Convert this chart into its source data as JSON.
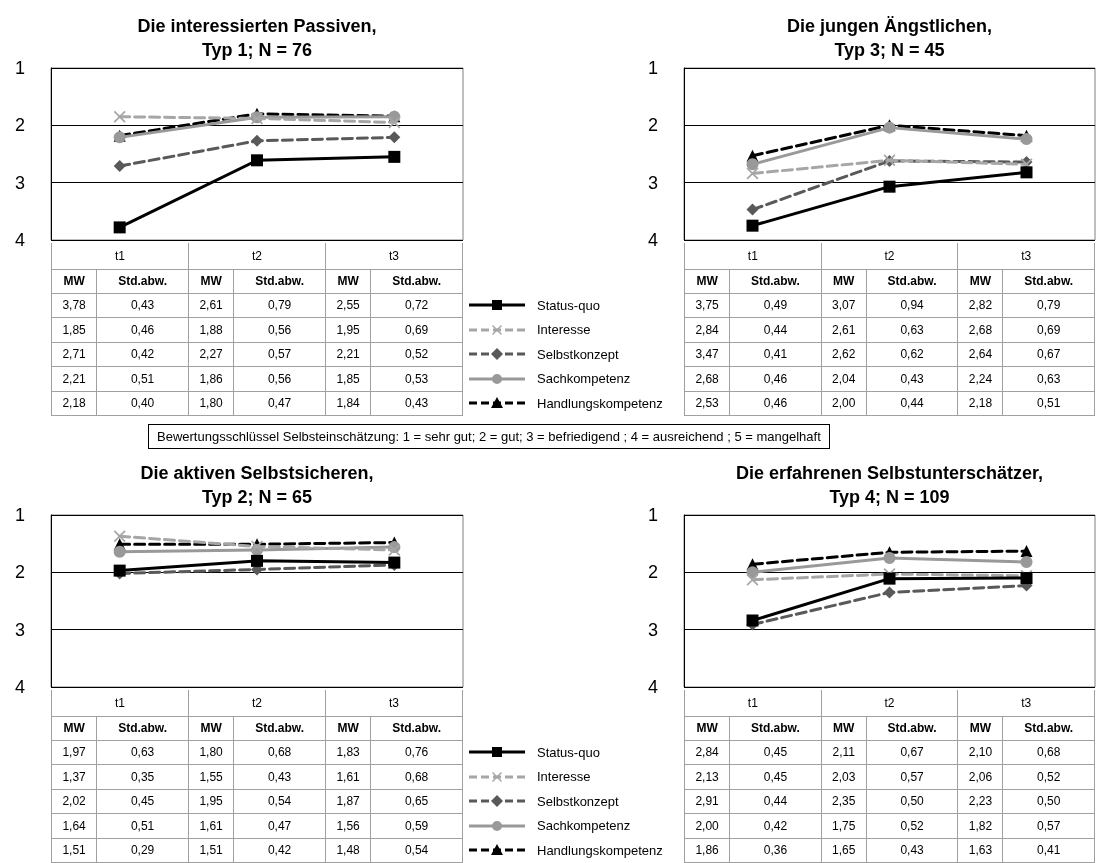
{
  "chart_data": [
    {
      "type": "line",
      "title": "Die interessierten Passiven,\nTyp 1; N = 76",
      "categories": [
        "t1",
        "t2",
        "t3"
      ],
      "ylim": [
        4,
        1
      ],
      "yticks": [
        1,
        2,
        3,
        4
      ],
      "grid": "y",
      "legend": "right",
      "annotations": [
        "MW",
        "Std.abw.",
        "0,43",
        "0,79",
        "0,72",
        "0,46",
        "0,56",
        "0,69",
        "0,42",
        "0,57",
        "0,52",
        "0,51",
        "0,56",
        "0,53",
        "0,40",
        "0,47",
        "0,43",
        "Bewertungsschlüssel Selbsteinschätzung:  1 = sehr gut; 2 = gut; 3 = befriedigend ; 4 = ausreichend ; 5 = mangelhaft"
      ],
      "series": [
        {
          "name": "Status-quo",
          "color": "#000000",
          "marker": "square",
          "line_style": "solid",
          "values": [
            3.78,
            2.61,
            2.55
          ],
          "value_labels": [
            "3,78",
            "2,61",
            "2,55"
          ]
        },
        {
          "name": "Interesse",
          "color": "#a6a6a6",
          "marker": "cross",
          "line_style": "dashed",
          "values": [
            1.85,
            1.88,
            1.95
          ],
          "value_labels": [
            "1,85",
            "1,88",
            "1,95"
          ]
        },
        {
          "name": "Selbstkonzept",
          "color": "#595959",
          "marker": "diamond",
          "line_style": "dashed",
          "values": [
            2.71,
            2.27,
            2.21
          ],
          "value_labels": [
            "2,71",
            "2,27",
            "2,21"
          ]
        },
        {
          "name": "Sachkompetenz",
          "color": "#999999",
          "marker": "circle",
          "line_style": "solid",
          "values": [
            2.21,
            1.86,
            1.85
          ],
          "value_labels": [
            "2,21",
            "1,86",
            "1,85"
          ]
        },
        {
          "name": "Handlungskompetenz",
          "color": "#000000",
          "marker": "triangle",
          "line_style": "dashed",
          "values": [
            2.18,
            1.8,
            1.84
          ],
          "value_labels": [
            "2,18",
            "1,80",
            "1,84"
          ]
        }
      ]
    },
    {
      "type": "line",
      "title": "Die jungen Ängstlichen,\nTyp 3; N = 45",
      "categories": [
        "t1",
        "t2",
        "t3"
      ],
      "ylim": [
        4,
        1
      ],
      "yticks": [
        1,
        2,
        3,
        4
      ],
      "grid": "y",
      "annotations": [
        "MW",
        "Std.abw.",
        "0,49",
        "0,94",
        "0,79",
        "0,44",
        "0,63",
        "0,69",
        "0,41",
        "0,62",
        "0,67",
        "0,46",
        "0,43",
        "0,63",
        "0,46",
        "0,44",
        "0,51"
      ],
      "series": [
        {
          "color": "#000000",
          "marker": "square",
          "line_style": "solid",
          "values": [
            3.75,
            3.07,
            2.82
          ],
          "value_labels": [
            "3,75",
            "3,07",
            "2,82"
          ]
        },
        {
          "color": "#a6a6a6",
          "marker": "cross",
          "line_style": "dashed",
          "values": [
            2.84,
            2.61,
            2.68
          ],
          "value_labels": [
            "2,84",
            "2,61",
            "2,68"
          ]
        },
        {
          "color": "#595959",
          "marker": "diamond",
          "line_style": "dashed",
          "values": [
            3.47,
            2.62,
            2.64
          ],
          "value_labels": [
            "3,47",
            "2,62",
            "2,64"
          ]
        },
        {
          "color": "#999999",
          "marker": "circle",
          "line_style": "solid",
          "values": [
            2.68,
            2.04,
            2.24
          ],
          "value_labels": [
            "2,68",
            "2,04",
            "2,24"
          ]
        },
        {
          "color": "#000000",
          "marker": "triangle",
          "line_style": "dashed",
          "values": [
            2.53,
            2.0,
            2.18
          ],
          "value_labels": [
            "2,53",
            "2,00",
            "2,18"
          ]
        }
      ]
    },
    {
      "type": "line",
      "title": "Die aktiven Selbstsicheren,\nTyp 2; N = 65",
      "categories": [
        "t1",
        "t2",
        "t3"
      ],
      "ylim": [
        4,
        1
      ],
      "yticks": [
        1,
        2,
        3,
        4
      ],
      "grid": "y",
      "legend": "right",
      "annotations": [
        "MW",
        "Std.abw.",
        "0,63",
        "0,68",
        "0,76",
        "0,35",
        "0,43",
        "0,68",
        "0,45",
        "0,54",
        "0,65",
        "0,51",
        "0,47",
        "0,59",
        "0,29",
        "0,42",
        "0,54"
      ],
      "series": [
        {
          "name": "Status-quo",
          "color": "#000000",
          "marker": "square",
          "line_style": "solid",
          "values": [
            1.97,
            1.8,
            1.83
          ],
          "value_labels": [
            "1,97",
            "1,80",
            "1,83"
          ]
        },
        {
          "name": "Interesse",
          "color": "#a6a6a6",
          "marker": "cross",
          "line_style": "dashed",
          "values": [
            1.37,
            1.55,
            1.61
          ],
          "value_labels": [
            "1,37",
            "1,55",
            "1,61"
          ]
        },
        {
          "name": "Selbstkonzept",
          "color": "#595959",
          "marker": "diamond",
          "line_style": "dashed",
          "values": [
            2.02,
            1.95,
            1.87
          ],
          "value_labels": [
            "2,02",
            "1,95",
            "1,87"
          ]
        },
        {
          "name": "Sachkompetenz",
          "color": "#999999",
          "marker": "circle",
          "line_style": "solid",
          "values": [
            1.64,
            1.61,
            1.56
          ],
          "value_labels": [
            "1,64",
            "1,61",
            "1,56"
          ]
        },
        {
          "name": "Handlungskompetenz",
          "color": "#000000",
          "marker": "triangle",
          "line_style": "dashed",
          "values": [
            1.51,
            1.51,
            1.48
          ],
          "value_labels": [
            "1,51",
            "1,51",
            "1,48"
          ]
        }
      ]
    },
    {
      "type": "line",
      "title": "Die erfahrenen Selbstunterschätzer,\nTyp 4; N = 109",
      "categories": [
        "t1",
        "t2",
        "t3"
      ],
      "ylim": [
        4,
        1
      ],
      "yticks": [
        1,
        2,
        3,
        4
      ],
      "grid": "y",
      "annotations": [
        "MW",
        "Std.abw.",
        "0,45",
        "0,67",
        "0,68",
        "0,45",
        "0,57",
        "0,52",
        "0,44",
        "0,50",
        "0,50",
        "0,42",
        "0,52",
        "0,57",
        "0,36",
        "0,43",
        "0,41"
      ],
      "series": [
        {
          "color": "#000000",
          "marker": "square",
          "line_style": "solid",
          "values": [
            2.84,
            2.11,
            2.1
          ],
          "value_labels": [
            "2,84",
            "2,11",
            "2,10"
          ]
        },
        {
          "color": "#a6a6a6",
          "marker": "cross",
          "line_style": "dashed",
          "values": [
            2.13,
            2.03,
            2.06
          ],
          "value_labels": [
            "2,13",
            "2,03",
            "2,06"
          ]
        },
        {
          "color": "#595959",
          "marker": "diamond",
          "line_style": "dashed",
          "values": [
            2.91,
            2.35,
            2.23
          ],
          "value_labels": [
            "2,91",
            "2,35",
            "2,23"
          ]
        },
        {
          "color": "#999999",
          "marker": "circle",
          "line_style": "solid",
          "values": [
            2.0,
            1.75,
            1.82
          ],
          "value_labels": [
            "2,00",
            "1,75",
            "1,82"
          ]
        },
        {
          "color": "#000000",
          "marker": "triangle",
          "line_style": "dashed",
          "values": [
            1.86,
            1.65,
            1.63
          ],
          "value_labels": [
            "1,86",
            "1,65",
            "1,63"
          ]
        }
      ]
    }
  ]
}
